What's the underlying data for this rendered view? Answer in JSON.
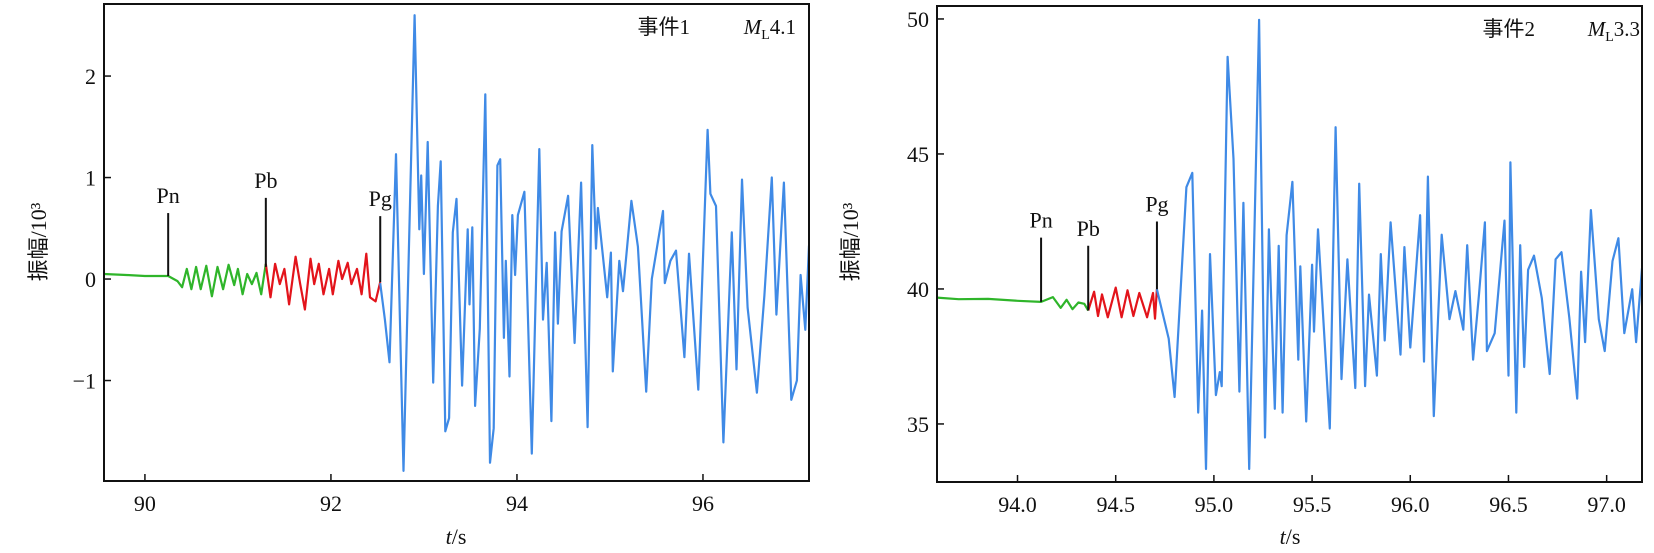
{
  "colors": {
    "pre_pn": "#2fb52a",
    "pn_to_pg": "#e3141b",
    "after_pg": "#3f8ae6",
    "axis": "#111111"
  },
  "chart_data": [
    {
      "type": "line",
      "title": "事件1",
      "magnitude_prefix": "M",
      "magnitude_sub": "L",
      "magnitude_value": "4.1",
      "xlabel_italic": "t",
      "xlabel_unit": "/s",
      "ylabel": "振幅/10³",
      "xlim": [
        89.56,
        97.14
      ],
      "ylim": [
        -1.99,
        2.71
      ],
      "xticks": [
        90,
        92,
        94,
        96
      ],
      "xtick_labels": [
        "90",
        "92",
        "94",
        "96"
      ],
      "yticks": [
        -1,
        0,
        1,
        2
      ],
      "ytick_labels": [
        "−1",
        "0",
        "1",
        "2"
      ],
      "phases": [
        {
          "label": "Pn",
          "t": 90.25,
          "y_from": 0.03,
          "y_to": 0.65
        },
        {
          "label": "Pb",
          "t": 91.3,
          "y_from": 0.12,
          "y_to": 0.8
        },
        {
          "label": "Pg",
          "t": 92.53,
          "y_from": -0.03,
          "y_to": 0.62
        }
      ],
      "series": [
        {
          "name": "pre_pn",
          "points": [
            [
              89.56,
              0.05
            ],
            [
              89.8,
              0.04
            ],
            [
              90.0,
              0.03
            ],
            [
              90.25,
              0.03
            ],
            [
              90.35,
              -0.02
            ],
            [
              90.4,
              -0.08
            ],
            [
              90.45,
              0.1
            ],
            [
              90.5,
              -0.1
            ],
            [
              90.55,
              0.12
            ],
            [
              90.6,
              -0.1
            ],
            [
              90.66,
              0.13
            ],
            [
              90.72,
              -0.17
            ],
            [
              90.78,
              0.12
            ],
            [
              90.84,
              -0.1
            ],
            [
              90.9,
              0.14
            ],
            [
              90.96,
              -0.06
            ],
            [
              91.0,
              0.1
            ],
            [
              91.05,
              -0.15
            ],
            [
              91.1,
              0.05
            ],
            [
              91.15,
              -0.05
            ],
            [
              91.2,
              0.06
            ],
            [
              91.25,
              -0.15
            ],
            [
              91.3,
              0.15
            ]
          ]
        },
        {
          "name": "pn_to_pg",
          "points": [
            [
              91.3,
              0.15
            ],
            [
              91.35,
              -0.18
            ],
            [
              91.4,
              0.15
            ],
            [
              91.45,
              -0.05
            ],
            [
              91.5,
              0.1
            ],
            [
              91.55,
              -0.25
            ],
            [
              91.62,
              0.22
            ],
            [
              91.67,
              -0.05
            ],
            [
              91.72,
              -0.3
            ],
            [
              91.78,
              0.2
            ],
            [
              91.82,
              -0.05
            ],
            [
              91.87,
              0.15
            ],
            [
              91.92,
              -0.15
            ],
            [
              91.98,
              0.1
            ],
            [
              92.02,
              -0.15
            ],
            [
              92.08,
              0.18
            ],
            [
              92.12,
              0.0
            ],
            [
              92.18,
              0.16
            ],
            [
              92.22,
              -0.05
            ],
            [
              92.28,
              0.1
            ],
            [
              92.33,
              -0.15
            ],
            [
              92.38,
              0.25
            ],
            [
              92.42,
              -0.18
            ],
            [
              92.48,
              -0.22
            ],
            [
              92.53,
              -0.03
            ]
          ]
        },
        {
          "name": "after_pg",
          "points": [
            [
              92.53,
              -0.04
            ],
            [
              92.58,
              -0.4
            ],
            [
              92.63,
              -0.82
            ],
            [
              92.7,
              1.23
            ],
            [
              92.78,
              -1.89
            ],
            [
              92.9,
              2.6
            ],
            [
              92.95,
              0.49
            ],
            [
              92.97,
              1.02
            ],
            [
              93.0,
              0.05
            ],
            [
              93.04,
              1.35
            ],
            [
              93.1,
              -1.02
            ],
            [
              93.15,
              0.72
            ],
            [
              93.18,
              1.16
            ],
            [
              93.23,
              -1.5
            ],
            [
              93.27,
              -1.37
            ],
            [
              93.31,
              0.46
            ],
            [
              93.35,
              0.79
            ],
            [
              93.41,
              -1.05
            ],
            [
              93.47,
              0.49
            ],
            [
              93.49,
              -0.25
            ],
            [
              93.52,
              0.51
            ],
            [
              93.55,
              -1.25
            ],
            [
              93.6,
              -0.49
            ],
            [
              93.66,
              1.82
            ],
            [
              93.71,
              -1.81
            ],
            [
              93.75,
              -1.47
            ],
            [
              93.79,
              1.12
            ],
            [
              93.82,
              1.18
            ],
            [
              93.86,
              -0.58
            ],
            [
              93.88,
              0.18
            ],
            [
              93.92,
              -0.96
            ],
            [
              93.95,
              0.63
            ],
            [
              93.98,
              0.04
            ],
            [
              94.01,
              0.63
            ],
            [
              94.08,
              0.86
            ],
            [
              94.16,
              -1.72
            ],
            [
              94.24,
              1.28
            ],
            [
              94.28,
              -0.4
            ],
            [
              94.32,
              0.16
            ],
            [
              94.37,
              -1.4
            ],
            [
              94.41,
              0.46
            ],
            [
              94.44,
              -0.44
            ],
            [
              94.48,
              0.47
            ],
            [
              94.55,
              0.82
            ],
            [
              94.62,
              -0.63
            ],
            [
              94.69,
              0.95
            ],
            [
              94.76,
              -1.46
            ],
            [
              94.81,
              1.32
            ],
            [
              94.85,
              0.3
            ],
            [
              94.87,
              0.7
            ],
            [
              94.97,
              -0.18
            ],
            [
              95.01,
              0.26
            ],
            [
              95.03,
              -0.91
            ],
            [
              95.1,
              0.18
            ],
            [
              95.14,
              -0.12
            ],
            [
              95.23,
              0.77
            ],
            [
              95.3,
              0.32
            ],
            [
              95.39,
              -1.11
            ],
            [
              95.45,
              0.0
            ],
            [
              95.57,
              0.67
            ],
            [
              95.59,
              -0.04
            ],
            [
              95.65,
              0.18
            ],
            [
              95.71,
              0.28
            ],
            [
              95.8,
              -0.77
            ],
            [
              95.85,
              0.25
            ],
            [
              95.95,
              -1.09
            ],
            [
              96.05,
              1.47
            ],
            [
              96.08,
              0.84
            ],
            [
              96.14,
              0.72
            ],
            [
              96.22,
              -1.61
            ],
            [
              96.31,
              0.46
            ],
            [
              96.36,
              -0.89
            ],
            [
              96.42,
              0.98
            ],
            [
              96.48,
              -0.28
            ],
            [
              96.58,
              -1.12
            ],
            [
              96.66,
              -0.16
            ],
            [
              96.74,
              1.0
            ],
            [
              96.79,
              -0.35
            ],
            [
              96.87,
              0.95
            ],
            [
              96.95,
              -1.19
            ],
            [
              97.01,
              -1.0
            ],
            [
              97.05,
              0.04
            ],
            [
              97.1,
              -0.5
            ],
            [
              97.14,
              0.33
            ]
          ]
        }
      ]
    },
    {
      "type": "line",
      "title": "事件2",
      "magnitude_prefix": "M",
      "magnitude_sub": "L",
      "magnitude_value": "3.3",
      "xlabel_italic": "t",
      "xlabel_unit": "/s",
      "ylabel": "振幅/10³",
      "xlim": [
        93.59,
        97.18
      ],
      "ylim": [
        32.85,
        50.48
      ],
      "xticks": [
        94.0,
        94.5,
        95.0,
        95.5,
        96.0,
        96.5,
        97.0
      ],
      "xtick_labels": [
        "94.0",
        "94.5",
        "95.0",
        "95.5",
        "96.0",
        "96.5",
        "97.0"
      ],
      "yticks": [
        35,
        40,
        45,
        50
      ],
      "ytick_labels": [
        "35",
        "40",
        "45",
        "50"
      ],
      "phases": [
        {
          "label": "Pn",
          "t": 94.12,
          "y_from": 39.52,
          "y_to": 41.9
        },
        {
          "label": "Pb",
          "t": 94.36,
          "y_from": 39.2,
          "y_to": 41.6
        },
        {
          "label": "Pg",
          "t": 94.71,
          "y_from": 39.99,
          "y_to": 42.5
        }
      ],
      "series": [
        {
          "name": "pre_pn",
          "points": [
            [
              93.59,
              39.68
            ],
            [
              93.7,
              39.62
            ],
            [
              93.85,
              39.63
            ],
            [
              94.0,
              39.56
            ],
            [
              94.12,
              39.52
            ],
            [
              94.18,
              39.7
            ],
            [
              94.22,
              39.3
            ],
            [
              94.25,
              39.6
            ],
            [
              94.28,
              39.25
            ],
            [
              94.31,
              39.5
            ],
            [
              94.34,
              39.45
            ],
            [
              94.36,
              39.2
            ]
          ]
        },
        {
          "name": "pn_to_pg",
          "points": [
            [
              94.36,
              39.2
            ],
            [
              94.39,
              39.9
            ],
            [
              94.41,
              39.0
            ],
            [
              94.43,
              39.8
            ],
            [
              94.46,
              38.95
            ],
            [
              94.5,
              40.05
            ],
            [
              94.53,
              38.95
            ],
            [
              94.56,
              39.95
            ],
            [
              94.59,
              39.0
            ],
            [
              94.62,
              39.85
            ],
            [
              94.66,
              38.95
            ],
            [
              94.69,
              39.85
            ],
            [
              94.7,
              38.9
            ],
            [
              94.71,
              39.99
            ]
          ]
        },
        {
          "name": "after_pg",
          "points": [
            [
              94.71,
              39.99
            ],
            [
              94.77,
              38.16
            ],
            [
              94.8,
              36.0
            ],
            [
              94.86,
              43.77
            ],
            [
              94.89,
              44.3
            ],
            [
              94.92,
              35.42
            ],
            [
              94.94,
              39.2
            ],
            [
              94.96,
              33.33
            ],
            [
              94.98,
              41.29
            ],
            [
              95.01,
              36.07
            ],
            [
              95.03,
              36.92
            ],
            [
              95.04,
              36.4
            ],
            [
              95.07,
              48.6
            ],
            [
              95.1,
              44.82
            ],
            [
              95.13,
              36.2
            ],
            [
              95.15,
              43.19
            ],
            [
              95.18,
              33.33
            ],
            [
              95.23,
              49.97
            ],
            [
              95.26,
              34.5
            ],
            [
              95.28,
              42.21
            ],
            [
              95.31,
              35.56
            ],
            [
              95.33,
              41.6
            ],
            [
              95.35,
              35.42
            ],
            [
              95.37,
              41.99
            ],
            [
              95.4,
              43.97
            ],
            [
              95.43,
              37.38
            ],
            [
              95.44,
              40.84
            ],
            [
              95.47,
              35.09
            ],
            [
              95.5,
              40.9
            ],
            [
              95.51,
              38.42
            ],
            [
              95.53,
              42.21
            ],
            [
              95.59,
              34.83
            ],
            [
              95.62,
              45.99
            ],
            [
              95.65,
              36.66
            ],
            [
              95.68,
              41.1
            ],
            [
              95.72,
              36.33
            ],
            [
              95.74,
              43.9
            ],
            [
              95.77,
              36.4
            ],
            [
              95.79,
              39.79
            ],
            [
              95.83,
              36.79
            ],
            [
              95.85,
              41.29
            ],
            [
              95.87,
              38.09
            ],
            [
              95.9,
              42.47
            ],
            [
              95.95,
              37.57
            ],
            [
              95.97,
              41.55
            ],
            [
              96.0,
              37.83
            ],
            [
              96.05,
              42.73
            ],
            [
              96.07,
              37.31
            ],
            [
              96.09,
              44.16
            ],
            [
              96.12,
              35.29
            ],
            [
              96.16,
              42.01
            ],
            [
              96.2,
              38.88
            ],
            [
              96.23,
              39.92
            ],
            [
              96.27,
              38.49
            ],
            [
              96.29,
              41.62
            ],
            [
              96.32,
              37.38
            ],
            [
              96.35,
              39.8
            ],
            [
              96.38,
              42.47
            ],
            [
              96.39,
              37.7
            ],
            [
              96.43,
              38.36
            ],
            [
              96.48,
              42.53
            ],
            [
              96.5,
              36.79
            ],
            [
              96.51,
              44.69
            ],
            [
              96.54,
              35.42
            ],
            [
              96.56,
              41.62
            ],
            [
              96.58,
              37.11
            ],
            [
              96.6,
              40.71
            ],
            [
              96.63,
              41.23
            ],
            [
              96.67,
              39.66
            ],
            [
              96.71,
              36.85
            ],
            [
              96.74,
              41.1
            ],
            [
              96.77,
              41.36
            ],
            [
              96.81,
              38.94
            ],
            [
              96.85,
              35.94
            ],
            [
              96.87,
              40.64
            ],
            [
              96.89,
              38.03
            ],
            [
              96.92,
              42.92
            ],
            [
              96.96,
              38.88
            ],
            [
              96.99,
              37.7
            ],
            [
              97.03,
              41.03
            ],
            [
              97.06,
              41.88
            ],
            [
              97.09,
              38.36
            ],
            [
              97.13,
              39.99
            ],
            [
              97.15,
              38.03
            ],
            [
              97.18,
              40.77
            ]
          ]
        }
      ]
    }
  ]
}
